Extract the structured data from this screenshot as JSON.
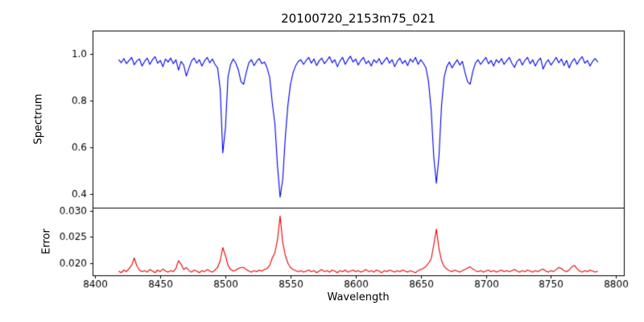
{
  "figure": {
    "background": "#ffffff"
  },
  "chart_data": {
    "type": "line",
    "title": "20100720_2153m75_021",
    "xlabel": "Wavelength",
    "x_start": 8418,
    "x_step": 2,
    "xlim": [
      8398,
      8806
    ],
    "x_ticks": [
      8400,
      8450,
      8500,
      8550,
      8600,
      8650,
      8700,
      8750,
      8800
    ],
    "x_tick_labels": [
      "8400",
      "8450",
      "8500",
      "8550",
      "8600",
      "8650",
      "8700",
      "8750",
      "8800"
    ],
    "grid": false,
    "legend": "none",
    "panels": [
      {
        "name": "spectrum",
        "ylabel": "Spectrum",
        "ylim": [
          0.34,
          1.1
        ],
        "y_ticks": [
          0.4,
          0.6,
          0.8,
          1.0
        ],
        "y_tick_labels": [
          "0.4",
          "0.6",
          "0.8",
          "1.0"
        ],
        "color": "#0000ee",
        "line_width": 1.1,
        "values": [
          0.975,
          0.962,
          0.98,
          0.958,
          0.972,
          0.985,
          0.953,
          0.97,
          0.978,
          0.948,
          0.968,
          0.982,
          0.955,
          0.975,
          0.988,
          0.96,
          0.972,
          0.945,
          0.978,
          0.965,
          0.982,
          0.958,
          0.975,
          0.93,
          0.968,
          0.952,
          0.905,
          0.938,
          0.97,
          0.982,
          0.96,
          0.975,
          0.948,
          0.97,
          0.985,
          0.962,
          0.978,
          0.955,
          0.94,
          0.85,
          0.575,
          0.68,
          0.9,
          0.955,
          0.978,
          0.96,
          0.93,
          0.88,
          0.87,
          0.92,
          0.962,
          0.975,
          0.95,
          0.968,
          0.98,
          0.958,
          0.965,
          0.94,
          0.9,
          0.79,
          0.7,
          0.52,
          0.385,
          0.46,
          0.64,
          0.78,
          0.87,
          0.92,
          0.95,
          0.968,
          0.975,
          0.955,
          0.972,
          0.985,
          0.96,
          0.978,
          0.95,
          0.97,
          0.982,
          0.958,
          0.972,
          0.988,
          0.962,
          0.975,
          0.945,
          0.97,
          0.985,
          0.955,
          0.975,
          0.99,
          0.965,
          0.978,
          0.952,
          0.972,
          0.985,
          0.958,
          0.97,
          0.948,
          0.975,
          0.962,
          0.98,
          0.955,
          0.97,
          0.985,
          0.96,
          0.975,
          0.945,
          0.968,
          0.982,
          0.958,
          0.972,
          0.95,
          0.978,
          0.965,
          0.985,
          0.955,
          0.975,
          0.96,
          0.94,
          0.88,
          0.76,
          0.56,
          0.445,
          0.56,
          0.78,
          0.9,
          0.945,
          0.965,
          0.94,
          0.958,
          0.975,
          0.952,
          0.968,
          0.92,
          0.88,
          0.87,
          0.925,
          0.96,
          0.975,
          0.955,
          0.97,
          0.985,
          0.958,
          0.972,
          0.948,
          0.975,
          0.962,
          0.98,
          0.955,
          0.97,
          0.985,
          0.96,
          0.942,
          0.968,
          0.978,
          0.952,
          0.972,
          0.985,
          0.958,
          0.975,
          0.948,
          0.97,
          0.982,
          0.935,
          0.96,
          0.975,
          0.952,
          0.968,
          0.985,
          0.962,
          0.978,
          0.95,
          0.972,
          0.94,
          0.965,
          0.98,
          0.955,
          0.975,
          0.988,
          0.96,
          0.972,
          0.948,
          0.968,
          0.98,
          0.965
        ]
      },
      {
        "name": "error",
        "ylabel": "Error",
        "ylim": [
          0.0177,
          0.0306
        ],
        "y_ticks": [
          0.02,
          0.025,
          0.03
        ],
        "y_tick_labels": [
          "0.020",
          "0.025",
          "0.030"
        ],
        "color": "#ee0000",
        "line_width": 1.1,
        "values": [
          0.0185,
          0.0182,
          0.0187,
          0.0184,
          0.019,
          0.0196,
          0.021,
          0.0195,
          0.0187,
          0.0184,
          0.0186,
          0.0183,
          0.0188,
          0.0185,
          0.0182,
          0.0187,
          0.0184,
          0.0189,
          0.0185,
          0.0183,
          0.0186,
          0.0184,
          0.019,
          0.0205,
          0.0198,
          0.0188,
          0.0192,
          0.0186,
          0.0183,
          0.0187,
          0.0185,
          0.0182,
          0.0186,
          0.0184,
          0.0188,
          0.0185,
          0.0183,
          0.0187,
          0.0192,
          0.0205,
          0.023,
          0.0215,
          0.0196,
          0.0188,
          0.0185,
          0.0187,
          0.019,
          0.0192,
          0.0192,
          0.0188,
          0.0185,
          0.0183,
          0.0186,
          0.0184,
          0.0187,
          0.0185,
          0.0188,
          0.019,
          0.0196,
          0.021,
          0.022,
          0.0245,
          0.029,
          0.024,
          0.0215,
          0.02,
          0.0192,
          0.0188,
          0.0186,
          0.0184,
          0.0186,
          0.0183,
          0.0185,
          0.0187,
          0.0184,
          0.0186,
          0.0182,
          0.0185,
          0.0188,
          0.0184,
          0.0186,
          0.0183,
          0.0187,
          0.0185,
          0.0182,
          0.0186,
          0.0184,
          0.0187,
          0.0183,
          0.0185,
          0.0187,
          0.0184,
          0.0186,
          0.0183,
          0.0185,
          0.0188,
          0.0184,
          0.0186,
          0.0183,
          0.0187,
          0.0185,
          0.0182,
          0.0186,
          0.0184,
          0.0187,
          0.0185,
          0.0183,
          0.0186,
          0.0184,
          0.0187,
          0.0185,
          0.0183,
          0.0186,
          0.0184,
          0.0182,
          0.0186,
          0.0188,
          0.019,
          0.0194,
          0.02,
          0.0208,
          0.0235,
          0.0265,
          0.0228,
          0.0205,
          0.0194,
          0.0189,
          0.0186,
          0.0184,
          0.0187,
          0.0185,
          0.0183,
          0.0186,
          0.0188,
          0.0191,
          0.0193,
          0.0189,
          0.0186,
          0.0184,
          0.0186,
          0.0183,
          0.0185,
          0.0187,
          0.0184,
          0.0186,
          0.0183,
          0.0185,
          0.0187,
          0.0184,
          0.0186,
          0.0184,
          0.0186,
          0.0188,
          0.0185,
          0.0183,
          0.0186,
          0.0184,
          0.0187,
          0.0185,
          0.0183,
          0.0186,
          0.0184,
          0.0187,
          0.0189,
          0.0185,
          0.0183,
          0.0186,
          0.0184,
          0.0188,
          0.0192,
          0.019,
          0.0186,
          0.0184,
          0.0187,
          0.0193,
          0.0196,
          0.019,
          0.0185,
          0.0183,
          0.0186,
          0.0184,
          0.0187,
          0.0185,
          0.0183,
          0.0185
        ]
      }
    ]
  }
}
